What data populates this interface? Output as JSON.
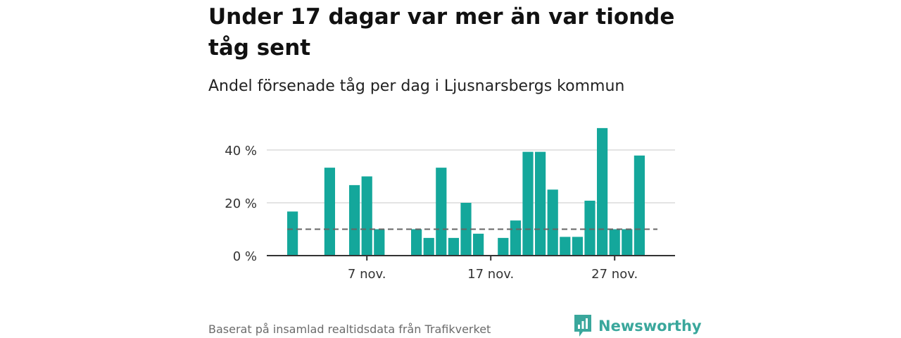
{
  "title": "Under 17 dagar var mer än var tionde tåg sent",
  "subtitle": "Andel försenade tåg per dag i Ljusnarsbergs kommun",
  "source": "Baserat på insamlad realtidsdata från Trafikverket",
  "brand": {
    "name": "Newsworthy",
    "color": "#3aa79c"
  },
  "colors": {
    "bar": "#14a79b",
    "grid": "#dcdcdc",
    "axis": "#333333",
    "reference": "#666666"
  },
  "chart_data": {
    "type": "bar",
    "categories": [
      "1 nov.",
      "2 nov.",
      "3 nov.",
      "4 nov.",
      "5 nov.",
      "6 nov.",
      "7 nov.",
      "8 nov.",
      "9 nov.",
      "10 nov.",
      "11 nov.",
      "12 nov.",
      "13 nov.",
      "14 nov.",
      "15 nov.",
      "16 nov.",
      "17 nov.",
      "18 nov.",
      "19 nov.",
      "20 nov.",
      "21 nov.",
      "22 nov.",
      "23 nov.",
      "24 nov.",
      "25 nov.",
      "26 nov.",
      "27 nov.",
      "28 nov.",
      "29 nov.",
      "30 nov."
    ],
    "values": [
      16.7,
      0,
      0,
      33.3,
      0,
      26.7,
      30,
      10,
      0,
      0,
      10,
      6.7,
      33.3,
      6.7,
      20,
      8.3,
      0,
      6.7,
      13.3,
      39.3,
      39.3,
      25,
      7.1,
      7.1,
      20.8,
      48.3,
      10,
      10,
      37.9,
      0
    ],
    "reference_line": {
      "value": 10
    },
    "ylim": [
      0,
      50
    ],
    "yticks": [
      {
        "value": 0,
        "label": "0 %"
      },
      {
        "value": 20,
        "label": "20 %"
      },
      {
        "value": 40,
        "label": "40 %"
      }
    ],
    "xticks": [
      {
        "category": "7 nov.",
        "label": "7 nov."
      },
      {
        "category": "17 nov.",
        "label": "17 nov."
      },
      {
        "category": "27 nov.",
        "label": "27 nov."
      }
    ],
    "grid": true
  }
}
